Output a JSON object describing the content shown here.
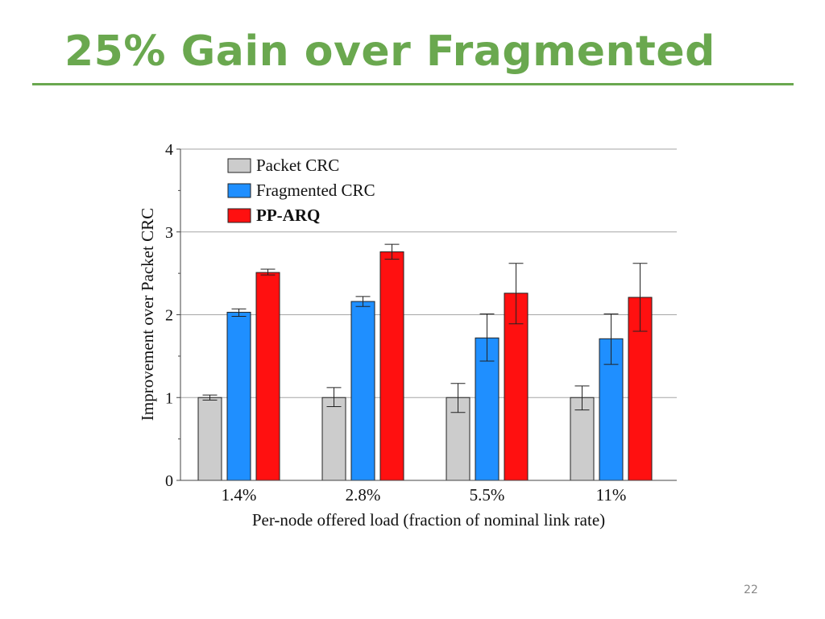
{
  "slide": {
    "title": "25% Gain over Fragmented",
    "page_number": "22"
  },
  "colors": {
    "accent": "#6aa84f",
    "packet_crc": "#cccccc",
    "fragmented_crc": "#1f8fff",
    "pp_arq": "#ff1010"
  },
  "chart_data": {
    "type": "bar",
    "title": "",
    "xlabel": "Per-node offered load (fraction of nominal link rate)",
    "ylabel": "Improvement over Packet CRC",
    "ylim": [
      0,
      4
    ],
    "yticks": [
      "0",
      "1",
      "2",
      "3",
      "4"
    ],
    "grid": true,
    "legend_position": "top-left",
    "categories": [
      "1.4%",
      "2.8%",
      "5.5%",
      "11%"
    ],
    "series": [
      {
        "name": "Packet CRC",
        "bold": false,
        "values": [
          1.0,
          1.0,
          1.0,
          1.0
        ],
        "error_low": [
          0.97,
          0.89,
          0.82,
          0.85
        ],
        "error_high": [
          1.03,
          1.12,
          1.17,
          1.14
        ]
      },
      {
        "name": "Fragmented CRC",
        "bold": false,
        "values": [
          2.03,
          2.16,
          1.72,
          1.71
        ],
        "error_low": [
          1.98,
          2.1,
          1.44,
          1.4
        ],
        "error_high": [
          2.07,
          2.22,
          2.01,
          2.01
        ]
      },
      {
        "name": "PP-ARQ",
        "bold": true,
        "values": [
          2.51,
          2.76,
          2.26,
          2.21
        ],
        "error_low": [
          2.48,
          2.67,
          1.89,
          1.8
        ],
        "error_high": [
          2.55,
          2.85,
          2.62,
          2.62
        ]
      }
    ]
  }
}
